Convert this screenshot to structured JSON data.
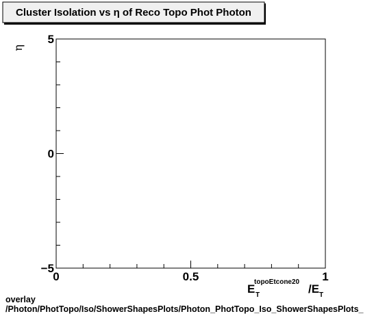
{
  "chart_data": {
    "type": "scatter",
    "title": "Cluster Isolation vs  η of Reco Topo Phot Photon",
    "xlabel": {
      "main": "E",
      "sub": "T",
      "sup": "topoEtcone20",
      "divider": "/E",
      "divider_sub": "T"
    },
    "ylabel": "η",
    "xlim": [
      0,
      1
    ],
    "ylim": [
      -5,
      5
    ],
    "x_tick_labels": [
      {
        "value": 0,
        "label": "0"
      },
      {
        "value": 0.5,
        "label": "0.5"
      },
      {
        "value": 1,
        "label": "1"
      }
    ],
    "y_tick_labels": [
      {
        "value": 5,
        "label": "5"
      },
      {
        "value": 0,
        "label": "0"
      },
      {
        "value": -5,
        "label": "−5"
      }
    ],
    "x_minor_step": 0.1,
    "y_minor_step": 1,
    "grid": false,
    "points": []
  },
  "footer": {
    "line1": "overlay",
    "line2": "/Photon/PhotTopo/Iso/ShowerShapesPlots/Photon_PhotTopo_Iso_ShowerShapesPlots_"
  }
}
